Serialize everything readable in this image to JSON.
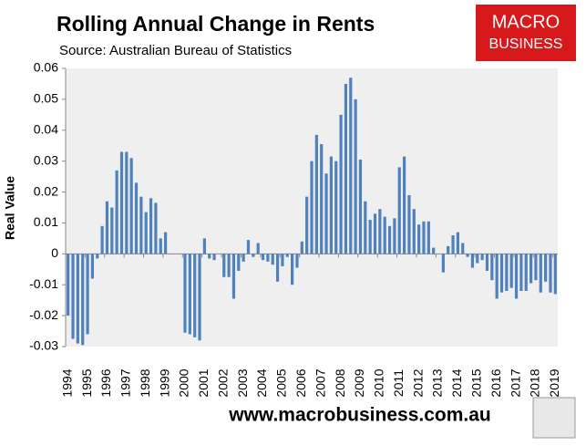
{
  "chart_data": {
    "type": "bar",
    "title": "Rolling Annual Change in Rents",
    "subtitle": "Source: Australian Bureau of Statistics",
    "y_label": "Real Value",
    "logo": [
      "MACRO",
      "BUSINESS"
    ],
    "footer": "www.macrobusiness.com.au",
    "color": "#4f81bd",
    "categories": [
      "1994",
      null,
      null,
      null,
      "1995",
      null,
      null,
      null,
      "1996",
      null,
      null,
      null,
      "1997",
      null,
      null,
      null,
      "1998",
      null,
      null,
      null,
      "1999",
      null,
      null,
      null,
      "2000",
      null,
      null,
      null,
      "2001",
      null,
      null,
      null,
      "2002",
      null,
      null,
      null,
      "2003",
      null,
      null,
      null,
      "2004",
      null,
      null,
      null,
      "2005",
      null,
      null,
      null,
      "2006",
      null,
      null,
      null,
      "2007",
      null,
      null,
      null,
      "2008",
      null,
      null,
      null,
      "2009",
      null,
      null,
      null,
      "2010",
      null,
      null,
      null,
      "2011",
      null,
      null,
      null,
      "2012",
      null,
      null,
      null,
      "2013",
      null,
      null,
      null,
      "2014",
      null,
      null,
      null,
      "2015",
      null,
      null,
      null,
      "2016",
      null,
      null,
      null,
      "2017",
      null,
      null,
      null,
      "2018",
      null,
      null,
      null,
      "2019"
    ],
    "values": [
      -0.02,
      -0.0275,
      -0.029,
      -0.0295,
      -0.026,
      -0.008,
      -0.0015,
      0.009,
      0.017,
      0.015,
      0.027,
      0.033,
      0.033,
      0.031,
      0.023,
      0.0185,
      0.0135,
      0.018,
      0.0165,
      0.005,
      0.007,
      0,
      0,
      0,
      -0.0255,
      -0.026,
      -0.027,
      -0.028,
      0.005,
      -0.0015,
      -0.002,
      0,
      -0.0075,
      -0.0075,
      -0.0145,
      -0.0055,
      -0.0025,
      0.0045,
      -0.001,
      0.0035,
      -0.002,
      -0.0025,
      -0.0035,
      -0.009,
      -0.004,
      -0.001,
      -0.01,
      -0.0045,
      0.004,
      0.0185,
      0.03,
      0.0385,
      0.0355,
      0.026,
      0.0315,
      0.03,
      0.045,
      0.055,
      0.057,
      0.05,
      0.0305,
      0.017,
      0.011,
      0.013,
      0.0145,
      0.012,
      0.009,
      0.0115,
      0.028,
      0.0315,
      0.019,
      0.0145,
      0.0095,
      0.0105,
      0.0105,
      0.002,
      0,
      -0.006,
      0.0025,
      0.006,
      0.007,
      0.0035,
      -0.001,
      -0.0045,
      -0.003,
      -0.002,
      -0.0055,
      -0.0085,
      -0.0145,
      -0.0125,
      -0.012,
      -0.011,
      -0.0145,
      -0.012,
      -0.012,
      -0.0095,
      -0.0085,
      -0.0125,
      -0.009,
      -0.0125,
      -0.013
    ],
    "ylim": [
      -0.03,
      0.06
    ],
    "yticks": [
      -0.03,
      -0.02,
      -0.01,
      0,
      0.01,
      0.02,
      0.03,
      0.04,
      0.05,
      0.06
    ],
    "grid": false
  }
}
